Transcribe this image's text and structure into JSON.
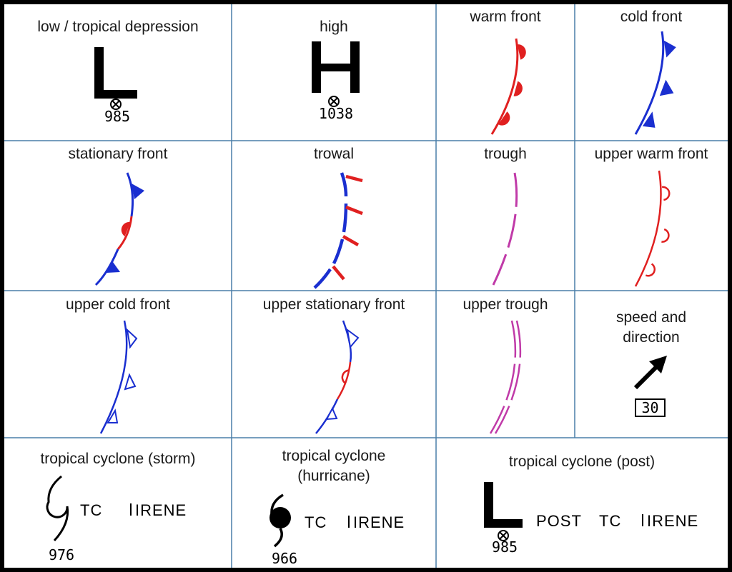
{
  "cells": [
    {
      "id": "low",
      "title": "low / tropical depression",
      "value": "985"
    },
    {
      "id": "high",
      "title": "high",
      "value": "1038"
    },
    {
      "id": "warm_front",
      "title": "warm front"
    },
    {
      "id": "cold_front",
      "title": "cold front"
    },
    {
      "id": "stationary_front",
      "title": "stationary front"
    },
    {
      "id": "trowal",
      "title": "trowal"
    },
    {
      "id": "trough",
      "title": "trough"
    },
    {
      "id": "upper_warm_front",
      "title": "upper warm front"
    },
    {
      "id": "upper_cold_front",
      "title": "upper cold front"
    },
    {
      "id": "upper_stationary_front",
      "title": "upper stationary front"
    },
    {
      "id": "upper_trough",
      "title": "upper trough"
    },
    {
      "id": "speed_direction",
      "title_line1": "speed and",
      "title_line2": "direction",
      "value": "30"
    },
    {
      "id": "tc_storm",
      "title": "tropical cyclone (storm)",
      "label_tc": "TC",
      "label_name": "IRENE",
      "value": "976"
    },
    {
      "id": "tc_hurricane",
      "title_line1": "tropical cyclone",
      "title_line2": "(hurricane)",
      "label_tc": "TC",
      "label_name": "IRENE",
      "value": "966"
    },
    {
      "id": "tc_post",
      "title": "tropical cyclone (post)",
      "label_post": "POST",
      "label_tc": "TC",
      "label_name": "IRENE",
      "value": "985"
    }
  ],
  "colors": {
    "grid": "#4a7fa8",
    "warm": "#e02020",
    "cold": "#1a2fd0",
    "trough": "#c03aa8"
  },
  "icons": {
    "low": "letter-L-symbol",
    "high": "letter-H-symbol",
    "center": "circled-x-center-marker",
    "speed": "arrow-northeast",
    "tc_storm": "open-cyclone-symbol",
    "tc_hurricane": "filled-cyclone-symbol"
  }
}
